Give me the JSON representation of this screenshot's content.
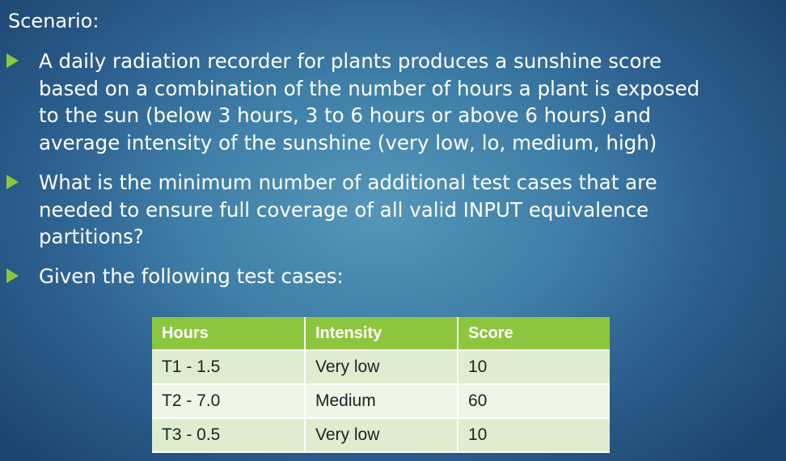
{
  "slide": {
    "heading": "Scenario:",
    "bullets": [
      "A daily radiation recorder for plants produces a sunshine score\nbased on a combination of the number of hours a plant is exposed\nto the sun (below 3 hours, 3 to 6 hours or above 6 hours) and\naverage intensity of the sunshine (very low, lo, medium, high)",
      "What is the minimum number of additional test cases that are\nneeded to ensure full coverage of all valid INPUT equivalence\npartitions?",
      "Given the following test cases:"
    ],
    "bullet_color": "#8cc63f"
  },
  "table": {
    "headers": [
      "Hours",
      "Intensity",
      "Score"
    ],
    "rows": [
      [
        "T1 - 1.5",
        "Very low",
        "10"
      ],
      [
        "T2 - 7.0",
        "Medium",
        "60"
      ],
      [
        "T3 - 0.5",
        "Very low",
        "10"
      ]
    ],
    "header_color": "#8cc63f"
  }
}
